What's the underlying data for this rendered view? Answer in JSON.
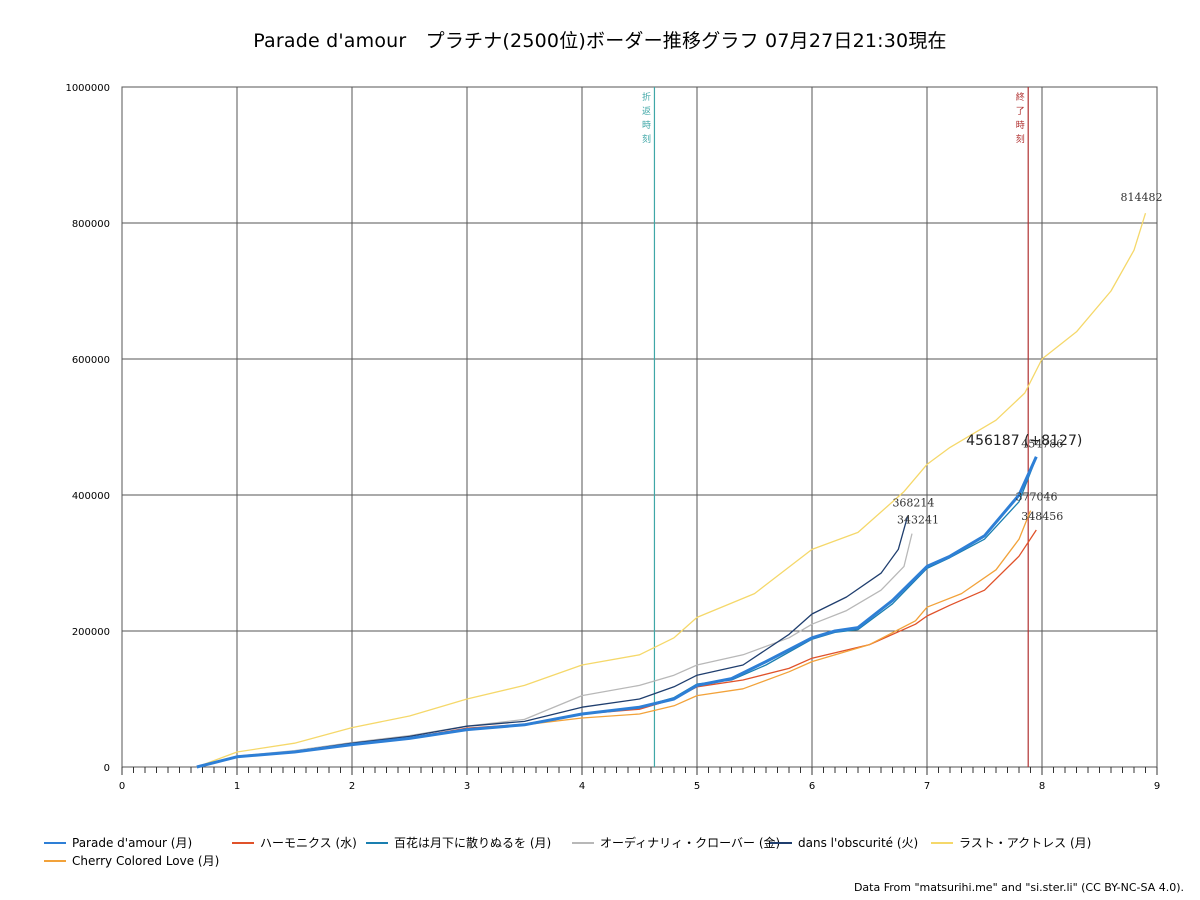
{
  "chart_data": {
    "type": "line",
    "title": "Parade d'amour　プラチナ(2500位)ボーダー推移グラフ 07月27日21:30現在",
    "xlim": [
      0,
      9
    ],
    "ylim": [
      0,
      1000000
    ],
    "x_ticks": [
      "0",
      "1",
      "2",
      "3",
      "4",
      "5",
      "6",
      "7",
      "8",
      "9"
    ],
    "y_ticks": [
      "0",
      "200000",
      "400000",
      "600000",
      "800000",
      "1000000"
    ],
    "grid": true,
    "legend_position": "bottom",
    "vertical_markers": [
      {
        "x": 4.63,
        "label": "折返時刻",
        "color": "#3fa7a7"
      },
      {
        "x": 7.88,
        "label": "終了時刻",
        "color": "#b03030"
      }
    ],
    "series": [
      {
        "name": "Parade d'amour (月)",
        "color": "#2e7fd6",
        "highlight": true,
        "points": [
          [
            0.65,
            0
          ],
          [
            1,
            15000
          ],
          [
            1.5,
            22000
          ],
          [
            2,
            33000
          ],
          [
            2.5,
            42000
          ],
          [
            3,
            55000
          ],
          [
            3.5,
            62000
          ],
          [
            4,
            78000
          ],
          [
            4.5,
            88000
          ],
          [
            4.8,
            100000
          ],
          [
            5,
            120000
          ],
          [
            5.3,
            130000
          ],
          [
            5.6,
            155000
          ],
          [
            6,
            190000
          ],
          [
            6.2,
            200000
          ],
          [
            6.4,
            205000
          ],
          [
            6.7,
            245000
          ],
          [
            7,
            295000
          ],
          [
            7.2,
            310000
          ],
          [
            7.5,
            340000
          ],
          [
            7.8,
            400000
          ],
          [
            7.95,
            456187
          ]
        ],
        "end_label": "456187 (+8127)"
      },
      {
        "name": "ハーモニクス (水)",
        "color": "#e0522a",
        "points": [
          [
            0.65,
            0
          ],
          [
            1,
            15000
          ],
          [
            1.5,
            22000
          ],
          [
            2,
            33000
          ],
          [
            2.5,
            43000
          ],
          [
            3,
            57000
          ],
          [
            3.5,
            63000
          ],
          [
            4,
            78000
          ],
          [
            4.5,
            85000
          ],
          [
            4.8,
            100000
          ],
          [
            5,
            118000
          ],
          [
            5.4,
            128000
          ],
          [
            5.8,
            145000
          ],
          [
            6,
            160000
          ],
          [
            6.5,
            180000
          ],
          [
            6.9,
            210000
          ],
          [
            7,
            222000
          ],
          [
            7.2,
            238000
          ],
          [
            7.5,
            260000
          ],
          [
            7.8,
            310000
          ],
          [
            7.95,
            348456
          ]
        ],
        "end_label": "348456"
      },
      {
        "name": "百花は月下に散りぬるを (月)",
        "color": "#1a7fb0",
        "points": [
          [
            0.65,
            0
          ],
          [
            1,
            15000
          ],
          [
            1.5,
            22000
          ],
          [
            2,
            33000
          ],
          [
            2.5,
            43000
          ],
          [
            3,
            56000
          ],
          [
            3.5,
            62000
          ],
          [
            4,
            78000
          ],
          [
            4.5,
            88000
          ],
          [
            4.8,
            102000
          ],
          [
            5,
            122000
          ],
          [
            5.3,
            128000
          ],
          [
            5.6,
            150000
          ],
          [
            6,
            188000
          ],
          [
            6.2,
            198000
          ],
          [
            6.4,
            202000
          ],
          [
            6.7,
            240000
          ],
          [
            7,
            292000
          ],
          [
            7.2,
            308000
          ],
          [
            7.5,
            335000
          ],
          [
            7.8,
            390000
          ],
          [
            7.95,
            454786
          ]
        ],
        "end_label": "454786"
      },
      {
        "name": "オーディナリィ・クローバー (金)",
        "color": "#b8b8b8",
        "points": [
          [
            0.65,
            0
          ],
          [
            1,
            16000
          ],
          [
            1.5,
            24000
          ],
          [
            2,
            36000
          ],
          [
            2.5,
            46000
          ],
          [
            3,
            60000
          ],
          [
            3.5,
            70000
          ],
          [
            4,
            105000
          ],
          [
            4.5,
            120000
          ],
          [
            4.8,
            135000
          ],
          [
            5,
            150000
          ],
          [
            5.4,
            165000
          ],
          [
            5.8,
            190000
          ],
          [
            6,
            210000
          ],
          [
            6.3,
            230000
          ],
          [
            6.6,
            260000
          ],
          [
            6.8,
            295000
          ],
          [
            6.87,
            343241
          ]
        ],
        "end_label": "343241"
      },
      {
        "name": "dans l'obscurité (火)",
        "color": "#1f3e6e",
        "points": [
          [
            0.65,
            0
          ],
          [
            1,
            15000
          ],
          [
            1.5,
            23000
          ],
          [
            2,
            35000
          ],
          [
            2.5,
            45000
          ],
          [
            3,
            60000
          ],
          [
            3.5,
            67000
          ],
          [
            4,
            88000
          ],
          [
            4.5,
            100000
          ],
          [
            4.8,
            118000
          ],
          [
            5,
            135000
          ],
          [
            5.4,
            150000
          ],
          [
            5.8,
            195000
          ],
          [
            6,
            225000
          ],
          [
            6.3,
            250000
          ],
          [
            6.6,
            285000
          ],
          [
            6.75,
            320000
          ],
          [
            6.83,
            368214
          ]
        ],
        "end_label": "368214"
      },
      {
        "name": "ラスト・アクトレス (月)",
        "color": "#f5d86a",
        "points": [
          [
            0.65,
            0
          ],
          [
            1,
            22000
          ],
          [
            1.5,
            35000
          ],
          [
            2,
            58000
          ],
          [
            2.5,
            75000
          ],
          [
            3,
            100000
          ],
          [
            3.5,
            120000
          ],
          [
            4,
            150000
          ],
          [
            4.5,
            165000
          ],
          [
            4.8,
            190000
          ],
          [
            5,
            220000
          ],
          [
            5.5,
            255000
          ],
          [
            6,
            320000
          ],
          [
            6.4,
            345000
          ],
          [
            6.8,
            405000
          ],
          [
            7,
            445000
          ],
          [
            7.2,
            470000
          ],
          [
            7.6,
            510000
          ],
          [
            7.85,
            550000
          ],
          [
            8,
            600000
          ],
          [
            8.3,
            640000
          ],
          [
            8.6,
            700000
          ],
          [
            8.8,
            760000
          ],
          [
            8.9,
            814482
          ]
        ],
        "end_label": "814482"
      },
      {
        "name": "Cherry Colored Love (月)",
        "color": "#f2a23a",
        "points": [
          [
            0.65,
            0
          ],
          [
            1,
            15000
          ],
          [
            1.5,
            22000
          ],
          [
            2,
            33000
          ],
          [
            2.5,
            42000
          ],
          [
            3,
            55000
          ],
          [
            3.5,
            62000
          ],
          [
            4,
            72000
          ],
          [
            4.5,
            78000
          ],
          [
            4.8,
            90000
          ],
          [
            5,
            105000
          ],
          [
            5.4,
            115000
          ],
          [
            5.8,
            140000
          ],
          [
            6,
            155000
          ],
          [
            6.5,
            180000
          ],
          [
            6.9,
            215000
          ],
          [
            7,
            235000
          ],
          [
            7.3,
            255000
          ],
          [
            7.6,
            290000
          ],
          [
            7.8,
            335000
          ],
          [
            7.9,
            377046
          ]
        ],
        "end_label": "377046"
      }
    ]
  },
  "credit": "Data From \"matsurihi.me\" and \"si.ster.li\" (CC BY-NC-SA 4.0)."
}
